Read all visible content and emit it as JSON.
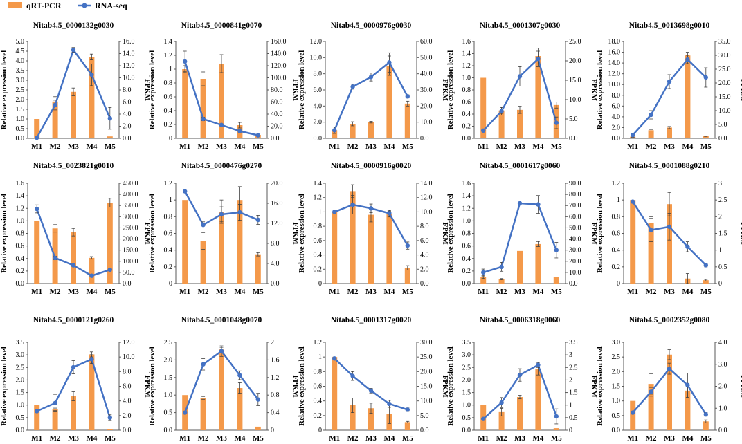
{
  "legend": {
    "bar_label": "qRT-PCR",
    "line_label": "RNA-seq",
    "bar_color": "#f4994a",
    "line_color": "#4472c4"
  },
  "axis_labels": {
    "left": "Relative expression level",
    "right": "FPKM"
  },
  "chart_data": [
    {
      "type": "bar+line",
      "title": "Nitab4.5_0000132g0030",
      "categories": [
        "M1",
        "M2",
        "M3",
        "M4",
        "M5"
      ],
      "left_ticks": [
        "0.0",
        "0.5",
        "1.0",
        "1.5",
        "2.0",
        "2.5",
        "3.0",
        "3.5",
        "4.0",
        "4.5",
        "5.0"
      ],
      "left_max": 5.0,
      "right_ticks": [
        "0.0",
        "2.0",
        "4.0",
        "6.0",
        "8.0",
        "10.0",
        "12.0",
        "14.0",
        "16.0"
      ],
      "right_max": 16.0,
      "bar_values": [
        1.0,
        1.9,
        2.4,
        4.2,
        0.1
      ],
      "bar_err": [
        0,
        0.25,
        0.2,
        0.15,
        0
      ],
      "line_values": [
        0.1,
        5.5,
        14.6,
        10.5,
        3.3
      ],
      "line_err": [
        0,
        0.8,
        0.4,
        1.8,
        1.8
      ]
    },
    {
      "type": "bar+line",
      "title": "Nitab4.5_0000841g0070",
      "categories": [
        "M1",
        "M2",
        "M3",
        "M4",
        "M5"
      ],
      "left_ticks": [
        "0",
        "0.2",
        "0.4",
        "0.6",
        "0.8",
        "1",
        "1.2",
        "1.4"
      ],
      "left_max": 1.4,
      "right_ticks": [
        "0.0",
        "20.0",
        "40.0",
        "60.0",
        "80.0",
        "100.0",
        "120.0",
        "140.0",
        "160.0"
      ],
      "right_max": 160.0,
      "bar_values": [
        1.0,
        0.86,
        1.08,
        0.19,
        0.05
      ],
      "bar_err": [
        0.05,
        0.1,
        0.13,
        0.04,
        0.01
      ],
      "line_values": [
        127,
        32,
        22,
        12,
        5
      ],
      "line_err": [
        17,
        3,
        2,
        2,
        1
      ]
    },
    {
      "type": "bar+line",
      "title": "Nitab4.5_0000976g0030",
      "categories": [
        "M1",
        "M2",
        "M3",
        "M4",
        "M5"
      ],
      "left_ticks": [
        "0.0",
        "2.0",
        "4.0",
        "6.0",
        "8.0",
        "10.0",
        "12.0"
      ],
      "left_max": 12.0,
      "right_ticks": [
        "0.0",
        "10.0",
        "20.0",
        "30.0",
        "40.0",
        "50.0",
        "60.0"
      ],
      "right_max": 60.0,
      "bar_values": [
        1.0,
        1.8,
        2.0,
        9.0,
        4.3
      ],
      "bar_err": [
        0,
        0.25,
        0.1,
        1.2,
        0.3
      ],
      "line_values": [
        5,
        32,
        38,
        47,
        26
      ],
      "line_err": [
        2,
        1.5,
        2.5,
        6,
        1
      ]
    },
    {
      "type": "bar+line",
      "title": "Nitab4.5_0001307g0030",
      "categories": [
        "M1",
        "M2",
        "M3",
        "M4",
        "M5"
      ],
      "left_ticks": [
        "0.0",
        "0.2",
        "0.4",
        "0.6",
        "0.8",
        "1.0",
        "1.2",
        "1.4",
        "1.6"
      ],
      "left_max": 1.6,
      "right_ticks": [
        "0.0",
        "5.0",
        "10.0",
        "15.0",
        "20.0",
        "25.0"
      ],
      "right_max": 25.0,
      "bar_values": [
        1.0,
        0.46,
        0.47,
        1.36,
        0.55
      ],
      "bar_err": [
        0,
        0.05,
        0.06,
        0.13,
        0.05
      ],
      "line_values": [
        2,
        7,
        16,
        20.5,
        4
      ],
      "line_err": [
        0,
        1,
        2.5,
        2,
        1.5
      ]
    },
    {
      "type": "bar+line",
      "title": "Nitab4.5_0013698g0010",
      "categories": [
        "M1",
        "M2",
        "M3",
        "M4",
        "M5"
      ],
      "left_ticks": [
        "0.0",
        "2.0",
        "4.0",
        "6.0",
        "8.0",
        "10.0",
        "12.0",
        "14.0",
        "16.0",
        "18.0"
      ],
      "left_max": 18.0,
      "right_ticks": [
        "0.0",
        "5.0",
        "10.0",
        "15.0",
        "20.0",
        "25.0",
        "30.0",
        "35.0"
      ],
      "right_max": 35.0,
      "bar_values": [
        0.3,
        1.5,
        2.0,
        15.4,
        0.4
      ],
      "bar_err": [
        0.1,
        0.15,
        0.2,
        0.6,
        0.05
      ],
      "line_values": [
        1.2,
        8.5,
        20.5,
        28.5,
        22
      ],
      "line_err": [
        0.5,
        1.5,
        2.5,
        1.5,
        3.5
      ]
    },
    {
      "type": "bar+line",
      "title": "Nitab4.5_0023821g0010",
      "categories": [
        "M1",
        "M2",
        "M3",
        "M4",
        "M5"
      ],
      "left_ticks": [
        "0.0",
        "0.2",
        "0.4",
        "0.6",
        "0.8",
        "1.0",
        "1.2",
        "1.4",
        "1.6"
      ],
      "left_max": 1.6,
      "right_ticks": [
        "0.0",
        "50.0",
        "100.0",
        "150.0",
        "200.0",
        "250.0",
        "300.0",
        "350.0",
        "400.0",
        "450.0"
      ],
      "right_max": 450.0,
      "bar_values": [
        1.0,
        0.88,
        0.82,
        0.41,
        1.29
      ],
      "bar_err": [
        0,
        0.06,
        0.06,
        0.02,
        0.07
      ],
      "line_values": [
        335,
        115,
        82,
        35,
        62
      ],
      "line_err": [
        18,
        8,
        6,
        3,
        3
      ]
    },
    {
      "type": "bar+line",
      "title": "Nitab4.5_0000476g0270",
      "categories": [
        "M1",
        "M2",
        "M3",
        "M4",
        "M5"
      ],
      "left_ticks": [
        "0",
        "0.2",
        "0.4",
        "0.6",
        "0.8",
        "1",
        "1.2"
      ],
      "left_max": 1.2,
      "right_ticks": [
        "0.0",
        "4.0",
        "8.0",
        "12.0",
        "16.0",
        "20.0"
      ],
      "right_max": 20.0,
      "bar_values": [
        1.0,
        0.51,
        0.86,
        1.0,
        0.35
      ],
      "bar_err": [
        0,
        0.1,
        0.14,
        0.16,
        0.02
      ],
      "line_values": [
        18.4,
        11.7,
        13.8,
        14.2,
        12.7
      ],
      "line_err": [
        0,
        0.6,
        1.5,
        1.6,
        0.9
      ]
    },
    {
      "type": "bar+line",
      "title": "Nitab4.5_0000916g0020",
      "categories": [
        "M1",
        "M2",
        "M3",
        "M4",
        "M5"
      ],
      "left_ticks": [
        "0",
        "0.2",
        "0.4",
        "0.6",
        "0.8",
        "1",
        "1.2",
        "1.4"
      ],
      "left_max": 1.4,
      "right_ticks": [
        "0.0",
        "2.0",
        "4.0",
        "6.0",
        "8.0",
        "10.0",
        "12.0",
        "14.0"
      ],
      "right_max": 14.0,
      "bar_values": [
        1.0,
        1.29,
        0.96,
        0.97,
        0.22
      ],
      "bar_err": [
        0,
        0.09,
        0.1,
        0.04,
        0.03
      ],
      "line_values": [
        10.0,
        11.0,
        10.5,
        9.8,
        5.3
      ],
      "line_err": [
        0,
        1.3,
        0.6,
        0.4,
        0.5
      ]
    },
    {
      "type": "bar+line",
      "title": "Nitab4.5_0001617g0060",
      "categories": [
        "M1",
        "M2",
        "M3",
        "M4",
        "M5"
      ],
      "left_ticks": [
        "0.0",
        "0.2",
        "0.4",
        "0.6",
        "0.8",
        "1.0",
        "1.2",
        "1.4",
        "1.6"
      ],
      "left_max": 1.6,
      "right_ticks": [
        "0.0",
        "10.0",
        "20.0",
        "30.0",
        "40.0",
        "50.0",
        "60.0",
        "70.0",
        "80.0",
        "90.0"
      ],
      "right_max": 90.0,
      "bar_values": [
        0.1,
        0.07,
        0.52,
        0.63,
        0.11
      ],
      "bar_err": [
        0.02,
        0.01,
        0,
        0.04,
        0
      ],
      "line_values": [
        10,
        15,
        72,
        71,
        30
      ],
      "line_err": [
        3,
        4,
        1,
        8,
        7
      ]
    },
    {
      "type": "bar+line",
      "title": "Nitab4.5_0001088g0210",
      "categories": [
        "M1",
        "M2",
        "M3",
        "M4",
        "M5"
      ],
      "left_ticks": [
        "0",
        "0.2",
        "0.4",
        "0.6",
        "0.8",
        "1",
        "1.2"
      ],
      "left_max": 1.2,
      "right_ticks": [
        "0",
        "0.5",
        "1",
        "1.5",
        "2",
        "2.5",
        "3"
      ],
      "right_max": 3.0,
      "bar_values": [
        1.0,
        0.72,
        0.95,
        0.06,
        0.04
      ],
      "bar_err": [
        0,
        0.08,
        0.14,
        0.06,
        0.01
      ],
      "line_values": [
        2.45,
        1.6,
        1.7,
        1.1,
        0.55
      ],
      "line_err": [
        0,
        0.35,
        0.4,
        0.15,
        0.05
      ]
    },
    {
      "type": "bar+line",
      "title": "Nitab4.5_0000121g0260",
      "categories": [
        "M1",
        "M2",
        "M3",
        "M4",
        "M5"
      ],
      "left_ticks": [
        "0.0",
        "0.5",
        "1.0",
        "1.5",
        "2.0",
        "2.5",
        "3.0",
        "3.5"
      ],
      "left_max": 3.5,
      "right_ticks": [
        "0.0",
        "2.0",
        "4.0",
        "6.0",
        "8.0",
        "10.0",
        "12.0"
      ],
      "right_max": 12.0,
      "bar_values": [
        1.0,
        0.83,
        1.35,
        3.02,
        0.03
      ],
      "bar_err": [
        0,
        0.05,
        0.18,
        0.1,
        0
      ],
      "line_values": [
        2.6,
        3.7,
        8.6,
        9.7,
        1.7
      ],
      "line_err": [
        0,
        1.2,
        0.9,
        0.6,
        0.4
      ]
    },
    {
      "type": "bar+line",
      "title": "Nitab4.5_0001048g0070",
      "categories": [
        "M1",
        "M2",
        "M3",
        "M4",
        "M5"
      ],
      "left_ticks": [
        "0.0",
        "0.5",
        "1.0",
        "1.5",
        "2.0",
        "2.5"
      ],
      "left_max": 2.5,
      "right_ticks": [
        "0",
        "0.4",
        "0.8",
        "1.2",
        "1.6",
        "2"
      ],
      "right_max": 2.0,
      "bar_values": [
        1.0,
        0.92,
        2.3,
        1.2,
        0.1
      ],
      "bar_err": [
        0,
        0.04,
        0.06,
        0.15,
        0
      ],
      "line_values": [
        0.4,
        1.5,
        1.8,
        1.25,
        0.7
      ],
      "line_err": [
        0,
        0.13,
        0.12,
        0.1,
        0.14
      ]
    },
    {
      "type": "bar+line",
      "title": "Nitab4.5_0001317g0020",
      "categories": [
        "M1",
        "M2",
        "M3",
        "M4",
        "M5"
      ],
      "left_ticks": [
        "0",
        "0.2",
        "0.4",
        "0.6",
        "0.8",
        "1",
        "1.2"
      ],
      "left_max": 1.2,
      "right_ticks": [
        "0.0",
        "5.0",
        "10.0",
        "15.0",
        "20.0",
        "25.0",
        "30.0"
      ],
      "right_max": 30.0,
      "bar_values": [
        1.0,
        0.34,
        0.3,
        0.22,
        0.11
      ],
      "bar_err": [
        0,
        0.1,
        0.07,
        0.13,
        0.01
      ],
      "line_values": [
        24.5,
        18.5,
        13.5,
        9.0,
        7.0
      ],
      "line_err": [
        0.5,
        1.5,
        0.8,
        1.2,
        0.6
      ]
    },
    {
      "type": "bar+line",
      "title": "Nitab4.5_0006318g0060",
      "categories": [
        "M1",
        "M2",
        "M3",
        "M4",
        "M5"
      ],
      "left_ticks": [
        "0.0",
        "0.5",
        "1.0",
        "1.5",
        "2.0",
        "2.5",
        "3.0",
        "3.5"
      ],
      "left_max": 3.5,
      "right_ticks": [
        "0",
        "0.5",
        "1",
        "1.5",
        "2",
        "2.5",
        "3",
        "3.5"
      ],
      "right_max": 3.5,
      "bar_values": [
        1.0,
        0.72,
        1.32,
        2.45,
        0.08
      ],
      "bar_err": [
        0,
        0.15,
        0.07,
        0.25,
        0
      ],
      "line_values": [
        0.45,
        1.1,
        2.2,
        2.6,
        0.55
      ],
      "line_err": [
        0,
        0.2,
        0.25,
        0.1,
        0.3
      ]
    },
    {
      "type": "bar+line",
      "title": "Nitab4.5_0002352g0080",
      "categories": [
        "M1",
        "M2",
        "M3",
        "M4",
        "M5"
      ],
      "left_ticks": [
        "0.0",
        "0.5",
        "1.0",
        "1.5",
        "2.0",
        "2.5",
        "3.0"
      ],
      "left_max": 3.0,
      "right_ticks": [
        "0.0",
        "1.0",
        "2.0",
        "3.0",
        "4.0"
      ],
      "right_max": 4.0,
      "bar_values": [
        1.0,
        1.58,
        2.58,
        1.35,
        0.3
      ],
      "bar_err": [
        0,
        0.35,
        0.17,
        0.25,
        0.05
      ],
      "line_values": [
        0.8,
        1.75,
        2.8,
        2.05,
        0.72
      ],
      "line_err": [
        0,
        0.2,
        0.25,
        0.55,
        0.08
      ]
    }
  ]
}
